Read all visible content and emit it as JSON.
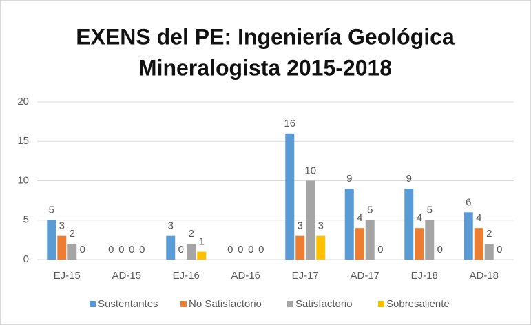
{
  "chart_data": {
    "type": "bar",
    "title": [
      "EXENS del PE: Ingeniería Geológica",
      "Mineralogista 2015-2018"
    ],
    "categories": [
      "EJ-15",
      "AD-15",
      "EJ-16",
      "AD-16",
      "EJ-17",
      "AD-17",
      "EJ-18",
      "AD-18"
    ],
    "series": [
      {
        "name": "Sustentantes",
        "color": "#5b9bd5",
        "values": [
          5,
          0,
          3,
          0,
          16,
          9,
          9,
          6
        ]
      },
      {
        "name": "No Satisfactorio",
        "color": "#ed7d31",
        "values": [
          3,
          0,
          0,
          0,
          3,
          4,
          4,
          4
        ]
      },
      {
        "name": "Satisfactorio",
        "color": "#a5a5a5",
        "values": [
          2,
          0,
          2,
          0,
          10,
          5,
          5,
          2
        ]
      },
      {
        "name": "Sobresaliente",
        "color": "#ffc000",
        "values": [
          0,
          0,
          1,
          0,
          3,
          0,
          0,
          0
        ]
      }
    ],
    "ylim": [
      0,
      20
    ],
    "yticks": [
      0,
      5,
      10,
      15,
      20
    ],
    "grid": true,
    "legend": "bottom"
  }
}
